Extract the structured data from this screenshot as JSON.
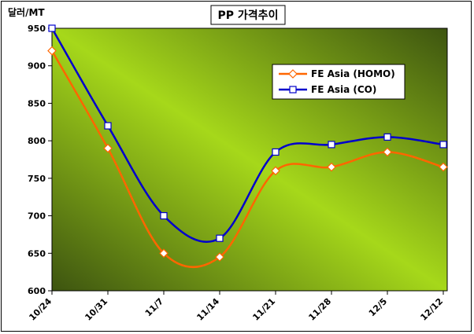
{
  "chart_data": {
    "type": "line",
    "title": "PP 가격추이",
    "unit_label": "달러/MT",
    "xlabel": "",
    "ylabel": "",
    "categories": [
      "10/24",
      "10/31",
      "11/7",
      "11/14",
      "11/21",
      "11/28",
      "12/5",
      "12/12"
    ],
    "ylim": [
      600,
      950
    ],
    "ytick_step": 50,
    "grid": false,
    "legend_position": "top-right",
    "series": [
      {
        "name": "FE Asia (HOMO)",
        "color": "#ff6600",
        "marker": "diamond",
        "values": [
          920,
          790,
          650,
          645,
          760,
          765,
          785,
          765
        ]
      },
      {
        "name": "FE Asia (CO)",
        "color": "#0000cc",
        "marker": "square",
        "values": [
          950,
          820,
          700,
          670,
          785,
          795,
          805,
          795
        ]
      }
    ]
  },
  "colors": {
    "plot_gradient_light": "#a6d81a",
    "plot_gradient_dark": "#3d5410"
  }
}
